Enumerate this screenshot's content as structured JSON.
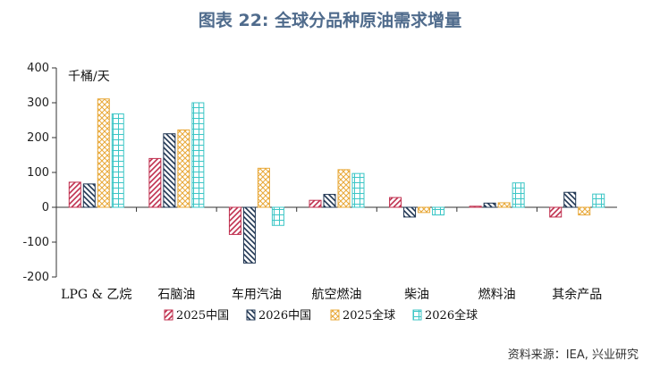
{
  "title": "图表 22: 全球分品种原油需求增量",
  "source": "资料来源：IEA, 兴业研究",
  "colors": {
    "cn2025": "#c0304f",
    "cn2026": "#1f3552",
    "gl2025": "#e8a838",
    "gl2026": "#3cc6c6"
  },
  "chart_data": {
    "type": "bar",
    "unit_label": "千桶/天",
    "categories": [
      "LPG & 乙烷",
      "石脑油",
      "车用汽油",
      "航空燃油",
      "柴油",
      "燃料油",
      "其余产品"
    ],
    "ylim": [
      -200,
      400
    ],
    "yticks": [
      -200,
      -100,
      0,
      100,
      200,
      300,
      400
    ],
    "grid": false,
    "legend_position": "bottom",
    "series": [
      {
        "name": "2025中国",
        "pattern": "hatch-forward",
        "color_key": "cn2025",
        "values": [
          72,
          140,
          -78,
          20,
          28,
          3,
          -28
        ]
      },
      {
        "name": "2026中国",
        "pattern": "hatch-backward",
        "color_key": "cn2026",
        "values": [
          67,
          211,
          -160,
          37,
          -28,
          12,
          43
        ]
      },
      {
        "name": "2025全球",
        "pattern": "crosshatch",
        "color_key": "gl2025",
        "values": [
          311,
          222,
          112,
          108,
          -15,
          13,
          -22
        ]
      },
      {
        "name": "2026全球",
        "pattern": "grid",
        "color_key": "gl2026",
        "values": [
          268,
          300,
          -52,
          97,
          -22,
          70,
          38
        ]
      }
    ]
  }
}
